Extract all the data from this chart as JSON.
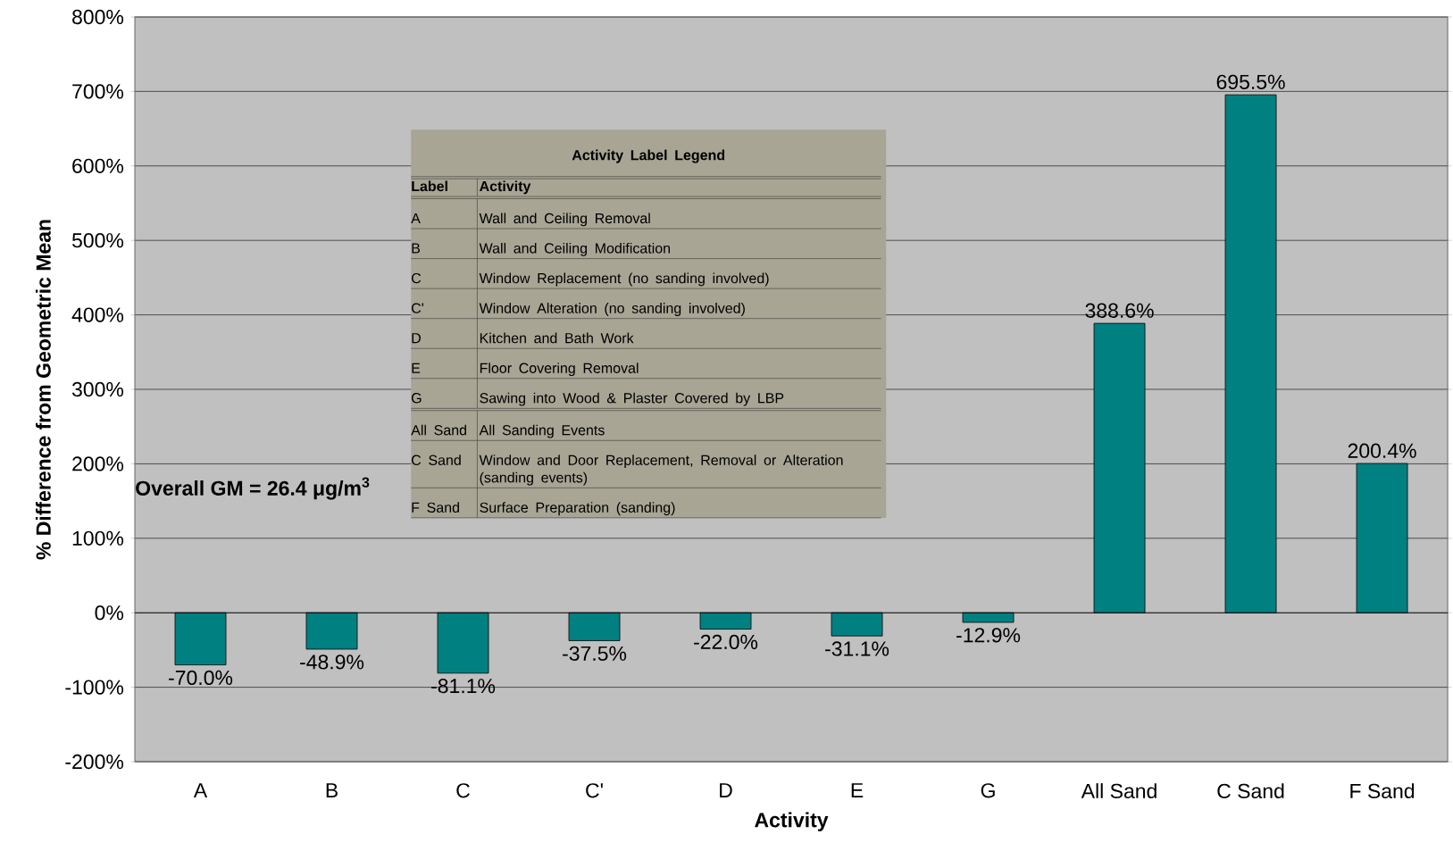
{
  "chart_data": {
    "type": "bar",
    "xlabel": "Activity",
    "ylabel": "% Difference from Geometric Mean",
    "categories": [
      "A",
      "B",
      "C",
      "C'",
      "D",
      "E",
      "G",
      "All Sand",
      "C Sand",
      "F Sand"
    ],
    "values": [
      -70.0,
      -48.9,
      -81.1,
      -37.5,
      -22.0,
      -31.1,
      -12.9,
      388.6,
      695.5,
      200.4
    ],
    "value_labels": [
      "-70.0%",
      "-48.9%",
      "-81.1%",
      "-37.5%",
      "-22.0%",
      "-31.1%",
      "-12.9%",
      "388.6%",
      "695.5%",
      "200.4%"
    ],
    "color": "#008080",
    "ylim": [
      -200,
      800
    ],
    "yticks": [
      {
        "value": -200,
        "label": "-200%"
      },
      {
        "value": -100,
        "label": "-100%"
      },
      {
        "value": 0,
        "label": "0%"
      },
      {
        "value": 100,
        "label": "100%"
      },
      {
        "value": 200,
        "label": "200%"
      },
      {
        "value": 300,
        "label": "300%"
      },
      {
        "value": 400,
        "label": "400%"
      },
      {
        "value": 500,
        "label": "500%"
      },
      {
        "value": 600,
        "label": "600%"
      },
      {
        "value": 700,
        "label": "700%"
      },
      {
        "value": 800,
        "label": "800%"
      }
    ],
    "grid": "y",
    "annotations": [
      "Overall GM = 26.4 μg/m$^{3}$",
      "Activity Label Legend",
      "Label",
      "Activity",
      "A",
      "Wall and Ceiling Removal",
      "B",
      "Wall and Ceiling Modification",
      "C",
      "Window Replacement (no sanding involved)",
      "C'",
      "Window Alteration (no sanding involved)",
      "D",
      "Kitchen and Bath Work",
      "E",
      "Floor Covering Removal",
      "G",
      "Sawing into Wood & Plaster Covered by LBP",
      "All Sand",
      "All Sanding Events",
      "C Sand",
      "Window and Door Replacement, Removal or Alteration (sanding events)",
      "F Sand",
      "Surface Preparation (sanding)"
    ]
  }
}
